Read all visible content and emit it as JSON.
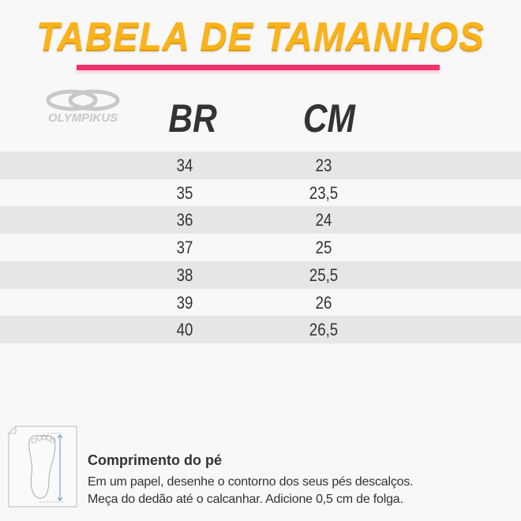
{
  "title": "TABELA DE TAMANHOS",
  "brand": "OLYMPIKUS",
  "accent_color": "#f0336f",
  "title_color": "#fbb31a",
  "table": {
    "headers": {
      "br": "BR",
      "cm": "CM"
    },
    "rows": [
      {
        "br": "34",
        "cm": "23"
      },
      {
        "br": "35",
        "cm": "23,5"
      },
      {
        "br": "36",
        "cm": "24"
      },
      {
        "br": "37",
        "cm": "25"
      },
      {
        "br": "38",
        "cm": "25,5"
      },
      {
        "br": "39",
        "cm": "26"
      },
      {
        "br": "40",
        "cm": "26,5"
      }
    ]
  },
  "footer": {
    "icon": "foot-measure-icon",
    "title": "Comprimento do pé",
    "line1": "Em um papel, desenhe o contorno dos seus pés descalços.",
    "line2": "Meça do dedão até o calcanhar. Adicione 0,5 cm de folga."
  }
}
